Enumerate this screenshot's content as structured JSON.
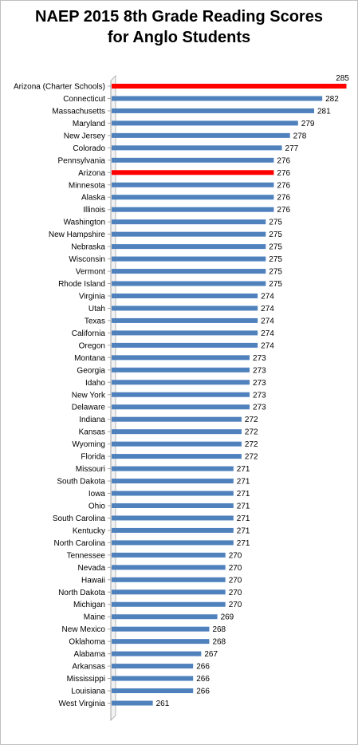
{
  "chart_data": {
    "type": "bar",
    "orientation": "horizontal",
    "title_lines": [
      "NAEP 2015 8th Grade Reading Scores",
      "for Anglo Students"
    ],
    "categories": [
      "Arizona (Charter Schools)",
      "Connecticut",
      "Massachusetts",
      "Maryland",
      "New Jersey",
      "Colorado",
      "Pennsylvania",
      "Arizona",
      "Minnesota",
      "Alaska",
      "Illinois",
      "Washington",
      "New Hampshire",
      "Nebraska",
      "Wisconsin",
      "Vermont",
      "Rhode Island",
      "Virginia",
      "Utah",
      "Texas",
      "California",
      "Oregon",
      "Montana",
      "Georgia",
      "Idaho",
      "New York",
      "Delaware",
      "Indiana",
      "Kansas",
      "Wyoming",
      "Florida",
      "Missouri",
      "South Dakota",
      "Iowa",
      "Ohio",
      "South Carolina",
      "Kentucky",
      "North Carolina",
      "Tennessee",
      "Nevada",
      "Hawaii",
      "North Dakota",
      "Michigan",
      "Maine",
      "New Mexico",
      "Oklahoma",
      "Alabama",
      "Arkansas",
      "Mississippi",
      "Louisiana",
      "West Virginia"
    ],
    "values": [
      285,
      282,
      281,
      279,
      278,
      277,
      276,
      276,
      276,
      276,
      276,
      275,
      275,
      275,
      275,
      275,
      275,
      274,
      274,
      274,
      274,
      274,
      273,
      273,
      273,
      273,
      273,
      272,
      272,
      272,
      272,
      271,
      271,
      271,
      271,
      271,
      271,
      271,
      270,
      270,
      270,
      270,
      270,
      269,
      268,
      268,
      267,
      266,
      266,
      266,
      261
    ],
    "highlighted": [
      "Arizona (Charter Schools)",
      "Arizona"
    ],
    "colors": {
      "bar": "#4f81bd",
      "highlight": "#ff0000",
      "axis": "#a6a6a6"
    },
    "grid": false,
    "legend": "none",
    "data_labels": true
  }
}
